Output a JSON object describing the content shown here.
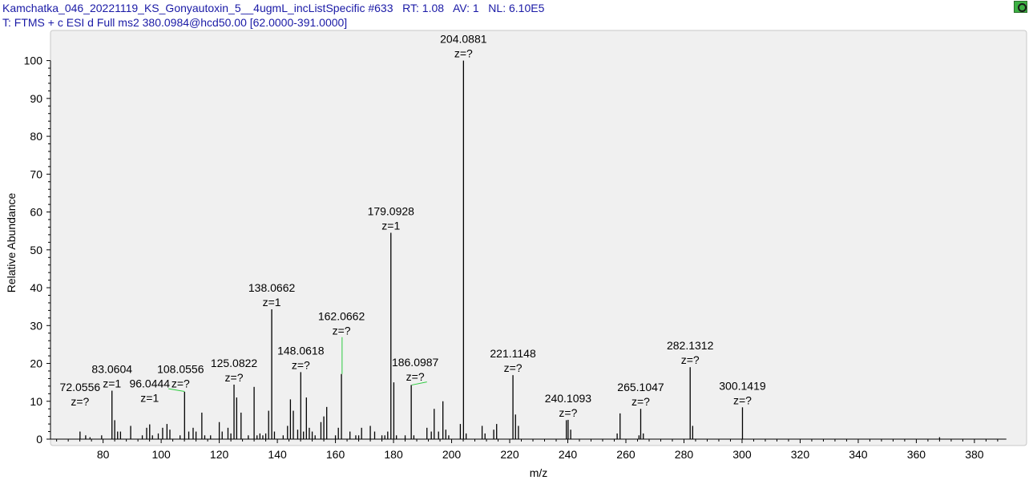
{
  "header": {
    "line1": "Kamchatka_046_20221119_KS_Gonyautoxin_5__4ugmL_incListSpecific #633   RT: 1.08   AV: 1   NL: 6.10E5",
    "line2": "T: FTMS + c ESI d Full ms2 380.0984@hcd50.00 [62.0000-391.0000]"
  },
  "colors": {
    "background": "#f0f0f0",
    "stick": "#000000",
    "highlight": "#2ecc40",
    "header_text": "#1a1aa6"
  },
  "icons": {
    "corner": "settings-gear-icon"
  },
  "chart_data": {
    "type": "bar",
    "xlabel": "m/z",
    "ylabel": "Relative Abundance",
    "xlim": [
      62,
      391
    ],
    "ylim": [
      0,
      100
    ],
    "xticks": [
      80,
      100,
      120,
      140,
      160,
      180,
      200,
      220,
      240,
      260,
      280,
      300,
      320,
      340,
      360,
      380
    ],
    "yticks": [
      0,
      10,
      20,
      30,
      40,
      50,
      60,
      70,
      80,
      90,
      100
    ],
    "peaks": [
      {
        "mz": 72.0556,
        "y": 2
      },
      {
        "mz": 74.0,
        "y": 1
      },
      {
        "mz": 75.5,
        "y": 0.5
      },
      {
        "mz": 79.5,
        "y": 1
      },
      {
        "mz": 83.0604,
        "y": 12.8
      },
      {
        "mz": 84.0,
        "y": 5
      },
      {
        "mz": 85.0,
        "y": 2
      },
      {
        "mz": 86.0,
        "y": 2
      },
      {
        "mz": 89.5,
        "y": 3.5
      },
      {
        "mz": 93.5,
        "y": 1
      },
      {
        "mz": 95.0,
        "y": 3
      },
      {
        "mz": 96.0444,
        "y": 3.9
      },
      {
        "mz": 97.0,
        "y": 1
      },
      {
        "mz": 99.0,
        "y": 1.5
      },
      {
        "mz": 100.5,
        "y": 3
      },
      {
        "mz": 102.0,
        "y": 4
      },
      {
        "mz": 103.0,
        "y": 2.5
      },
      {
        "mz": 106.5,
        "y": 1
      },
      {
        "mz": 108.0556,
        "y": 12.5,
        "highlight": true
      },
      {
        "mz": 109.5,
        "y": 2
      },
      {
        "mz": 111.0,
        "y": 3
      },
      {
        "mz": 112.0,
        "y": 2
      },
      {
        "mz": 114.0,
        "y": 7
      },
      {
        "mz": 115.0,
        "y": 1
      },
      {
        "mz": 117.0,
        "y": 1
      },
      {
        "mz": 120.0,
        "y": 4.5
      },
      {
        "mz": 121.0,
        "y": 2
      },
      {
        "mz": 123.0,
        "y": 3
      },
      {
        "mz": 124.0,
        "y": 1.5
      },
      {
        "mz": 125.0822,
        "y": 14.4
      },
      {
        "mz": 126.0,
        "y": 11
      },
      {
        "mz": 127.5,
        "y": 7
      },
      {
        "mz": 130.0,
        "y": 1
      },
      {
        "mz": 132.0,
        "y": 13.8
      },
      {
        "mz": 133.0,
        "y": 1
      },
      {
        "mz": 134.0,
        "y": 1.5
      },
      {
        "mz": 135.0,
        "y": 1
      },
      {
        "mz": 136.0,
        "y": 1.5
      },
      {
        "mz": 137.0,
        "y": 7.5
      },
      {
        "mz": 138.0662,
        "y": 34.3
      },
      {
        "mz": 139.0,
        "y": 2
      },
      {
        "mz": 142.0,
        "y": 1
      },
      {
        "mz": 143.5,
        "y": 3.5
      },
      {
        "mz": 144.5,
        "y": 10.5
      },
      {
        "mz": 145.5,
        "y": 7.5
      },
      {
        "mz": 147.0,
        "y": 2.5
      },
      {
        "mz": 148.0618,
        "y": 17.7
      },
      {
        "mz": 149.0,
        "y": 2
      },
      {
        "mz": 150.0,
        "y": 11
      },
      {
        "mz": 151.0,
        "y": 3
      },
      {
        "mz": 152.0,
        "y": 2
      },
      {
        "mz": 153.0,
        "y": 1
      },
      {
        "mz": 155.0,
        "y": 4.5
      },
      {
        "mz": 156.0,
        "y": 6
      },
      {
        "mz": 157.0,
        "y": 8.5
      },
      {
        "mz": 160.0,
        "y": 1
      },
      {
        "mz": 161.0,
        "y": 3
      },
      {
        "mz": 162.0662,
        "y": 17.2,
        "highlight": true
      },
      {
        "mz": 165.0,
        "y": 2
      },
      {
        "mz": 167.0,
        "y": 1
      },
      {
        "mz": 168.0,
        "y": 1
      },
      {
        "mz": 169.0,
        "y": 3
      },
      {
        "mz": 172.0,
        "y": 3.5
      },
      {
        "mz": 173.5,
        "y": 2
      },
      {
        "mz": 176.0,
        "y": 1
      },
      {
        "mz": 177.0,
        "y": 1
      },
      {
        "mz": 178.0,
        "y": 2
      },
      {
        "mz": 179.0928,
        "y": 54.5
      },
      {
        "mz": 180.1,
        "y": 15
      },
      {
        "mz": 181.0,
        "y": 1
      },
      {
        "mz": 184.0,
        "y": 1
      },
      {
        "mz": 186.0987,
        "y": 14.3,
        "highlight": true
      },
      {
        "mz": 187.0,
        "y": 1
      },
      {
        "mz": 191.5,
        "y": 3
      },
      {
        "mz": 193.0,
        "y": 2
      },
      {
        "mz": 194.0,
        "y": 8
      },
      {
        "mz": 195.5,
        "y": 2
      },
      {
        "mz": 197.0,
        "y": 10
      },
      {
        "mz": 198.0,
        "y": 2.5
      },
      {
        "mz": 199.0,
        "y": 1
      },
      {
        "mz": 203.0,
        "y": 4
      },
      {
        "mz": 204.0881,
        "y": 100
      },
      {
        "mz": 205.0,
        "y": 1.5
      },
      {
        "mz": 210.5,
        "y": 3.5
      },
      {
        "mz": 211.5,
        "y": 1.5
      },
      {
        "mz": 214.5,
        "y": 2.5
      },
      {
        "mz": 215.5,
        "y": 4
      },
      {
        "mz": 221.1148,
        "y": 16.9
      },
      {
        "mz": 222.0,
        "y": 6.5
      },
      {
        "mz": 223.0,
        "y": 3.5
      },
      {
        "mz": 239.5,
        "y": 5
      },
      {
        "mz": 240.1093,
        "y": 5.1
      },
      {
        "mz": 241.0,
        "y": 2.5
      },
      {
        "mz": 257.0,
        "y": 1.5
      },
      {
        "mz": 258.0,
        "y": 6.8
      },
      {
        "mz": 264.5,
        "y": 1
      },
      {
        "mz": 265.1047,
        "y": 8
      },
      {
        "mz": 266.0,
        "y": 1.5
      },
      {
        "mz": 282.1312,
        "y": 19
      },
      {
        "mz": 283.0,
        "y": 3.5
      },
      {
        "mz": 300.1419,
        "y": 8.4
      },
      {
        "mz": 368.0,
        "y": 0.5
      }
    ],
    "annotations": [
      {
        "mz": 72.0556,
        "label": "72.0556",
        "z": "z=?"
      },
      {
        "mz": 83.0604,
        "label": "83.0604",
        "z": "z=1"
      },
      {
        "mz": 96.0444,
        "label": "96.0444",
        "z": "z=1"
      },
      {
        "mz": 108.0556,
        "label": "108.0556",
        "z": "z=?"
      },
      {
        "mz": 125.0822,
        "label": "125.0822",
        "z": "z=?"
      },
      {
        "mz": 138.0662,
        "label": "138.0662",
        "z": "z=1"
      },
      {
        "mz": 148.0618,
        "label": "148.0618",
        "z": "z=?"
      },
      {
        "mz": 162.0662,
        "label": "162.0662",
        "z": "z=?"
      },
      {
        "mz": 179.0928,
        "label": "179.0928",
        "z": "z=1"
      },
      {
        "mz": 186.0987,
        "label": "186.0987",
        "z": "z=?"
      },
      {
        "mz": 204.0881,
        "label": "204.0881",
        "z": "z=?"
      },
      {
        "mz": 221.1148,
        "label": "221.1148",
        "z": "z=?"
      },
      {
        "mz": 240.1093,
        "label": "240.1093",
        "z": "z=?"
      },
      {
        "mz": 265.1047,
        "label": "265.1047",
        "z": "z=?"
      },
      {
        "mz": 282.1312,
        "label": "282.1312",
        "z": "z=?"
      },
      {
        "mz": 300.1419,
        "label": "300.1419",
        "z": "z=?"
      }
    ]
  }
}
